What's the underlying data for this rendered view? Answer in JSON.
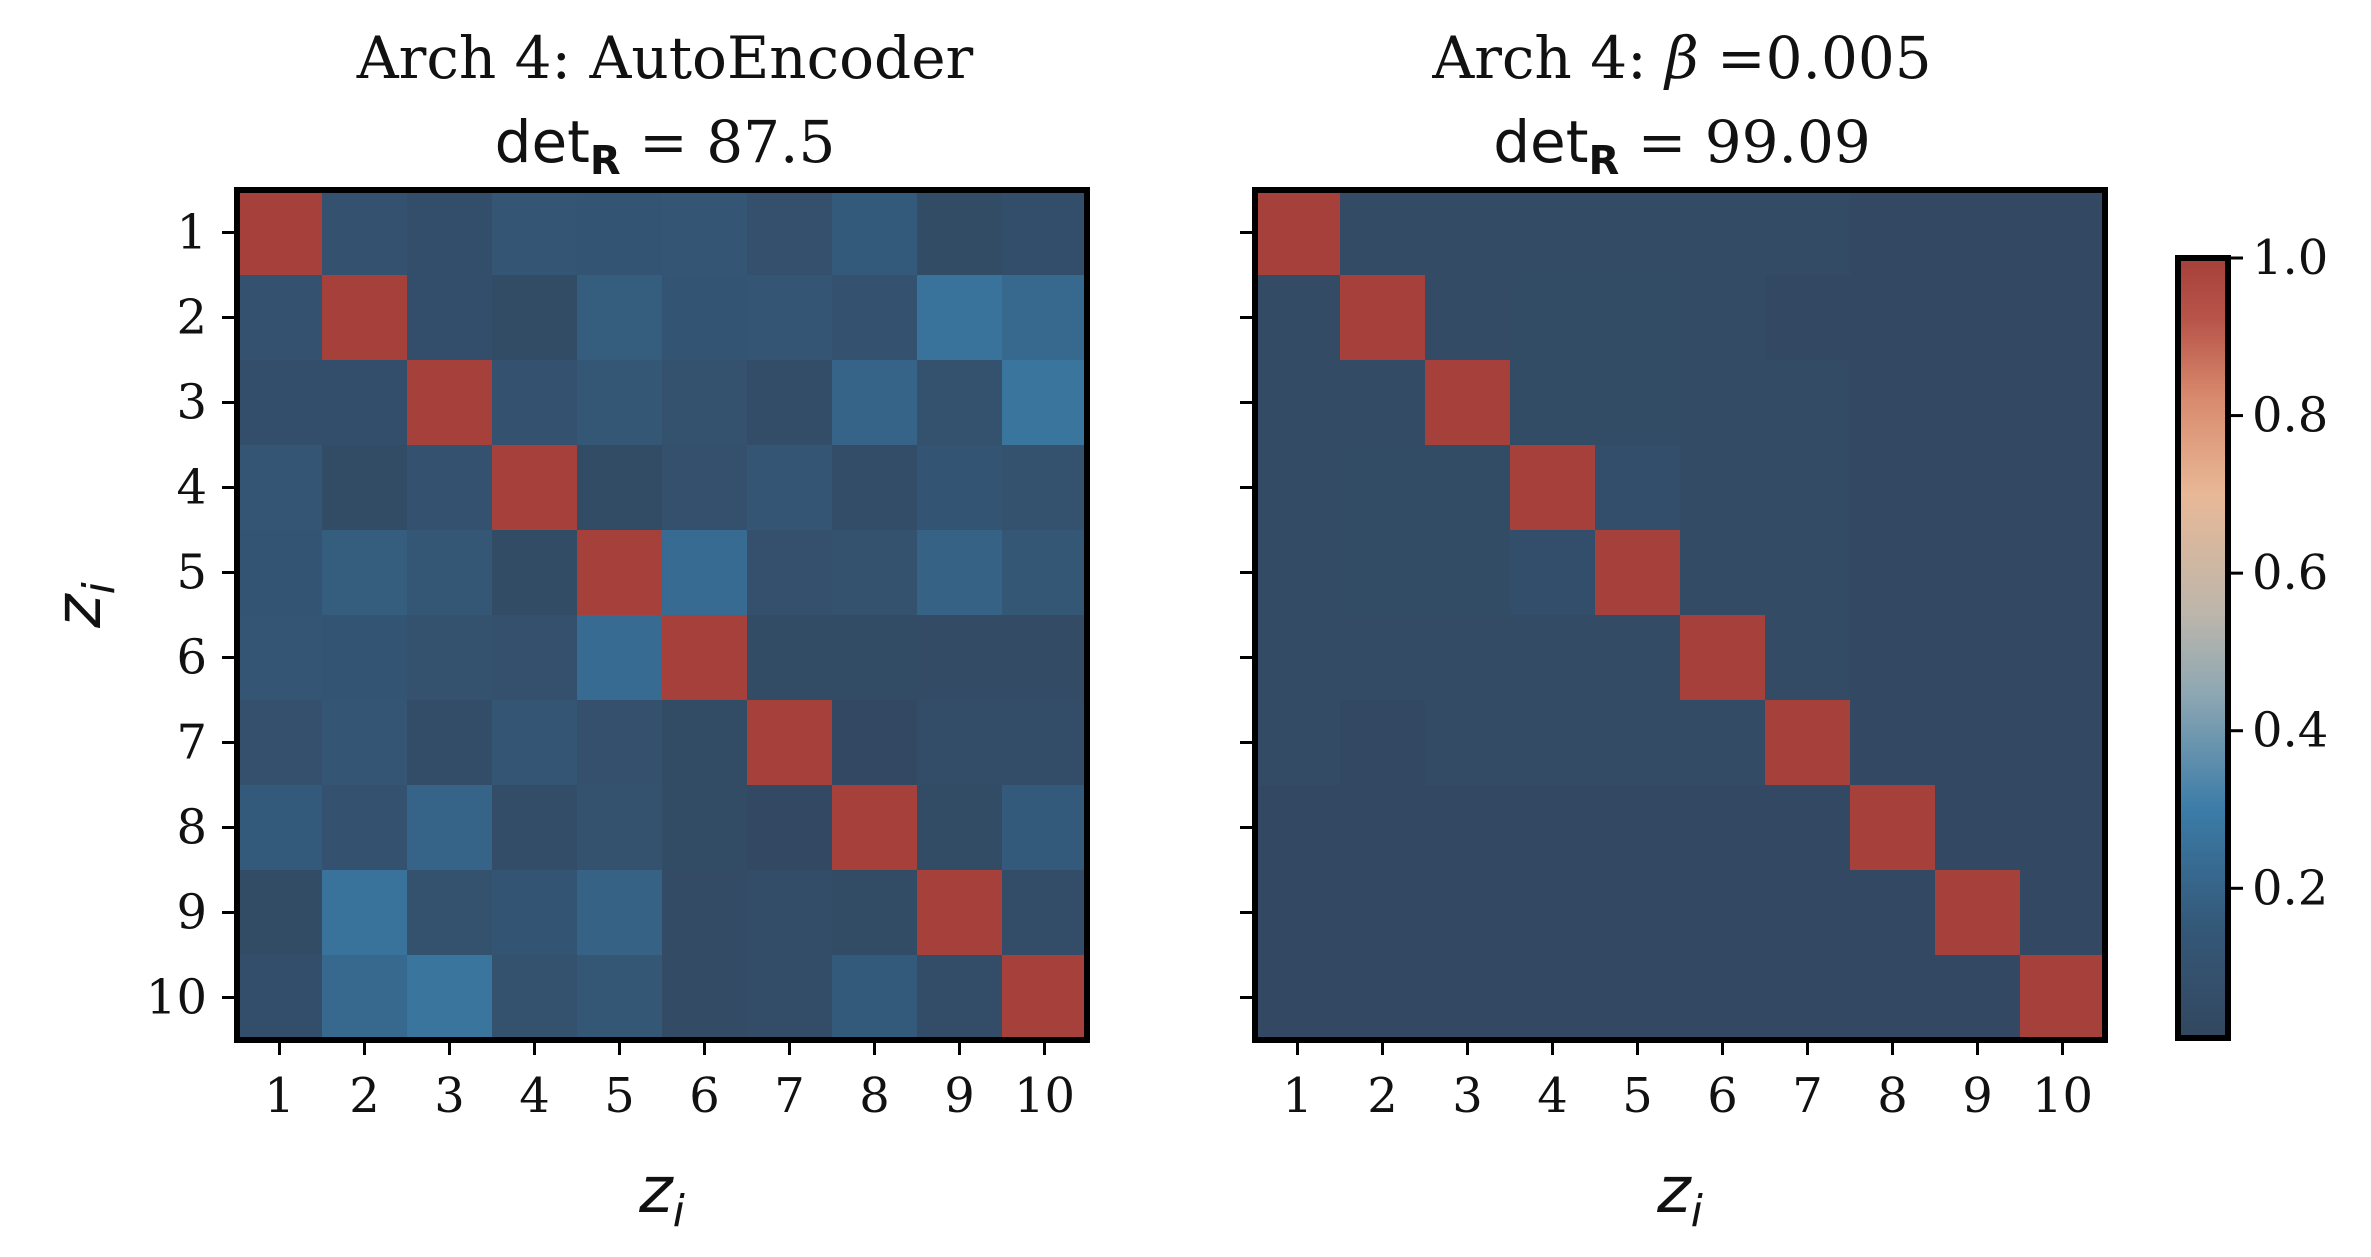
{
  "chart_data": [
    {
      "type": "heatmap",
      "title_line1": "Arch 4: AutoEncoder",
      "title_metric_label": "det",
      "title_metric_subscript": "R",
      "title_metric_value": "87.5",
      "title_metric_text": "det_R = 87.5",
      "xlabel": "z_i",
      "ylabel": "z_i",
      "x_ticks": [
        "1",
        "2",
        "3",
        "4",
        "5",
        "6",
        "7",
        "8",
        "9",
        "10"
      ],
      "y_ticks": [
        "1",
        "2",
        "3",
        "4",
        "5",
        "6",
        "7",
        "8",
        "9",
        "10"
      ],
      "values": [
        [
          1.0,
          0.1,
          0.07,
          0.13,
          0.12,
          0.13,
          0.08,
          0.16,
          0.05,
          0.07
        ],
        [
          0.1,
          1.0,
          0.07,
          0.05,
          0.17,
          0.12,
          0.13,
          0.1,
          0.26,
          0.22
        ],
        [
          0.07,
          0.07,
          1.0,
          0.1,
          0.14,
          0.09,
          0.06,
          0.2,
          0.09,
          0.27
        ],
        [
          0.13,
          0.05,
          0.1,
          1.0,
          0.05,
          0.08,
          0.13,
          0.06,
          0.12,
          0.09
        ],
        [
          0.12,
          0.17,
          0.14,
          0.05,
          1.0,
          0.23,
          0.08,
          0.09,
          0.19,
          0.14
        ],
        [
          0.13,
          0.12,
          0.09,
          0.08,
          0.23,
          1.0,
          0.05,
          0.05,
          0.04,
          0.04
        ],
        [
          0.08,
          0.13,
          0.06,
          0.13,
          0.08,
          0.05,
          1.0,
          0.03,
          0.06,
          0.06
        ],
        [
          0.16,
          0.1,
          0.2,
          0.06,
          0.09,
          0.05,
          0.03,
          1.0,
          0.05,
          0.16
        ],
        [
          0.05,
          0.26,
          0.09,
          0.12,
          0.19,
          0.04,
          0.06,
          0.05,
          1.0,
          0.06
        ],
        [
          0.07,
          0.22,
          0.27,
          0.09,
          0.14,
          0.04,
          0.06,
          0.16,
          0.06,
          1.0
        ]
      ]
    },
    {
      "type": "heatmap",
      "title_line1_prefix": "Arch 4: ",
      "title_line1_symbol": "β",
      "title_line1_suffix": " =0.005",
      "title_line1": "Arch 4: β =0.005",
      "title_metric_label": "det",
      "title_metric_subscript": "R",
      "title_metric_value": "99.09",
      "title_metric_text": "det_R = 99.09",
      "xlabel": "z_i",
      "ylabel": "",
      "x_ticks": [
        "1",
        "2",
        "3",
        "4",
        "5",
        "6",
        "7",
        "8",
        "9",
        "10"
      ],
      "y_ticks": [],
      "values": [
        [
          1.0,
          0.04,
          0.04,
          0.04,
          0.04,
          0.04,
          0.04,
          0.03,
          0.03,
          0.03
        ],
        [
          0.04,
          1.0,
          0.04,
          0.05,
          0.05,
          0.04,
          0.03,
          0.03,
          0.03,
          0.03
        ],
        [
          0.04,
          0.04,
          1.0,
          0.05,
          0.05,
          0.04,
          0.04,
          0.03,
          0.03,
          0.03
        ],
        [
          0.04,
          0.05,
          0.05,
          1.0,
          0.07,
          0.04,
          0.04,
          0.03,
          0.03,
          0.03
        ],
        [
          0.04,
          0.05,
          0.05,
          0.07,
          1.0,
          0.04,
          0.04,
          0.03,
          0.03,
          0.03
        ],
        [
          0.04,
          0.04,
          0.04,
          0.04,
          0.04,
          1.0,
          0.04,
          0.03,
          0.03,
          0.03
        ],
        [
          0.04,
          0.03,
          0.04,
          0.04,
          0.04,
          0.04,
          1.0,
          0.03,
          0.03,
          0.03
        ],
        [
          0.03,
          0.03,
          0.03,
          0.03,
          0.03,
          0.03,
          0.03,
          1.0,
          0.03,
          0.03
        ],
        [
          0.03,
          0.03,
          0.03,
          0.03,
          0.03,
          0.03,
          0.03,
          0.03,
          1.0,
          0.03
        ],
        [
          0.03,
          0.03,
          0.03,
          0.03,
          0.03,
          0.03,
          0.03,
          0.03,
          0.03,
          1.0
        ]
      ]
    }
  ],
  "colorbar": {
    "ticks": [
      "0.2",
      "0.4",
      "0.6",
      "0.8",
      "1.0"
    ],
    "tick_values": [
      0.2,
      0.4,
      0.6,
      0.8,
      1.0
    ],
    "range": [
      0.01,
      1.0
    ],
    "colormap_stops": [
      {
        "value": 0.01,
        "color": "#33475f"
      },
      {
        "value": 0.15,
        "color": "#345878"
      },
      {
        "value": 0.3,
        "color": "#3b7ca8"
      },
      {
        "value": 0.45,
        "color": "#8fa8b3"
      },
      {
        "value": 0.55,
        "color": "#bdb6ab"
      },
      {
        "value": 0.7,
        "color": "#e8b897"
      },
      {
        "value": 0.82,
        "color": "#d98b6e"
      },
      {
        "value": 0.92,
        "color": "#b8554a"
      },
      {
        "value": 1.0,
        "color": "#a6403a"
      }
    ]
  }
}
